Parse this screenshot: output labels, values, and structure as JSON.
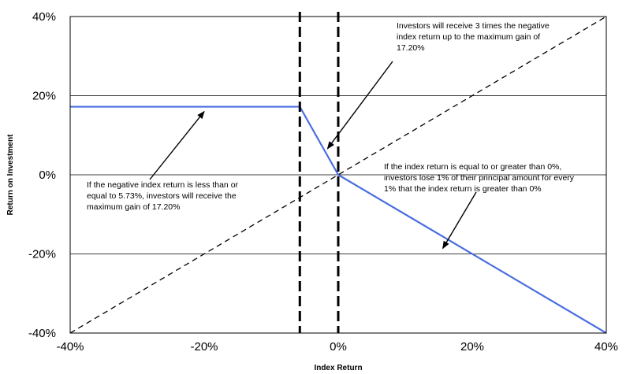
{
  "chart_data": {
    "type": "line",
    "title": "",
    "xlabel": "Index Return",
    "ylabel": "Return on Investment",
    "xlim": [
      -40,
      40
    ],
    "ylim": [
      -40,
      40
    ],
    "x_ticks": [
      -40,
      -20,
      0,
      20,
      40
    ],
    "y_ticks": [
      -40,
      -20,
      0,
      20,
      40
    ],
    "x_tick_labels": [
      "-40%",
      "-20%",
      "0%",
      "20%",
      "40%"
    ],
    "y_tick_labels": [
      "-40%",
      "-20%",
      "0%",
      "20%",
      "40%"
    ],
    "grid": "horizontal",
    "legend": "none",
    "series": [
      {
        "role": "payoff",
        "color": "#4a6ee0",
        "style": "solid",
        "x": [
          -40,
          -5.73,
          0,
          40
        ],
        "y": [
          17.2,
          17.2,
          0,
          -40
        ]
      },
      {
        "role": "index-return",
        "color": "#000000",
        "style": "dashed",
        "x": [
          -40,
          40
        ],
        "y": [
          -40,
          40
        ]
      }
    ],
    "vertical_markers": [
      {
        "x": -5.73,
        "style": "heavy-dashed"
      },
      {
        "x": 0,
        "style": "heavy-dashed"
      }
    ],
    "annotations": [
      {
        "lines": [
          "Investors will receive 3 times the negative",
          "index return up to the maximum gain of",
          "17.20%"
        ],
        "arrow_to": {
          "x": -1.6,
          "y": 6.6
        }
      },
      {
        "lines": [
          "If the negative index return is less than or",
          "equal to 5.73%, investors will receive the",
          "maximum gain of 17.20%"
        ],
        "arrow_to": {
          "x": -20,
          "y": 16
        }
      },
      {
        "lines": [
          "If the index return is equal to or greater than 0%,",
          "investors lose 1% of their principal amount for every",
          "1% that the index return is greater than 0%"
        ],
        "arrow_to": {
          "x": 15.6,
          "y": -18.6
        }
      }
    ]
  }
}
